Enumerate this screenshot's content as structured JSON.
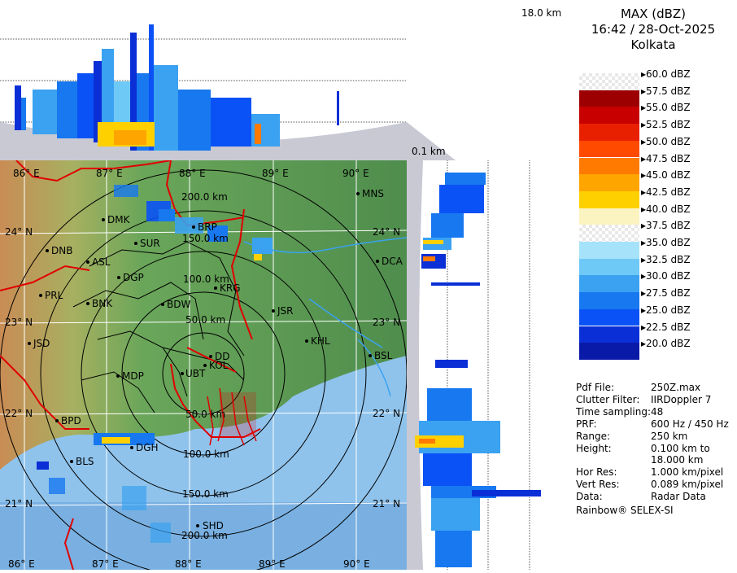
{
  "header": {
    "product": "MAX (dBZ)",
    "datetime": "16:42 / 28-Oct-2025",
    "station": "Kolkata"
  },
  "profile_labels": {
    "top_height": "18.0 km",
    "bottom_height": "0.1 km"
  },
  "colors": {
    "map_land": "#5c9a55",
    "map_sea": "#8fc3ec",
    "boundary_red": "#e00000",
    "grid_white": "#ffffff"
  },
  "color_scale": [
    {
      "label": "60.0 dBZ",
      "color": "#f2f2f2"
    },
    {
      "label": "57.5 dBZ",
      "color": "#9c0000"
    },
    {
      "label": "55.0 dBZ",
      "color": "#c80000"
    },
    {
      "label": "52.5 dBZ",
      "color": "#e82000"
    },
    {
      "label": "50.0 dBZ",
      "color": "#ff4a00"
    },
    {
      "label": "47.5 dBZ",
      "color": "#ff7a00"
    },
    {
      "label": "45.0 dBZ",
      "color": "#ffa500"
    },
    {
      "label": "42.5 dBZ",
      "color": "#ffd000"
    },
    {
      "label": "40.0 dBZ",
      "color": "#fbf3c0"
    },
    {
      "label": "37.5 dBZ",
      "color": "#ffffff"
    },
    {
      "label": "35.0 dBZ",
      "color": "#a6e3fb"
    },
    {
      "label": "32.5 dBZ",
      "color": "#6ec9f7"
    },
    {
      "label": "30.0 dBZ",
      "color": "#3aa2f0"
    },
    {
      "label": "27.5 dBZ",
      "color": "#1778f0"
    },
    {
      "label": "25.0 dBZ",
      "color": "#0a52f5"
    },
    {
      "label": "22.5 dBZ",
      "color": "#0a2fd6"
    },
    {
      "label": "20.0 dBZ",
      "color": "#0a1aa8"
    }
  ],
  "info": [
    {
      "key": "Pdf File:",
      "value": "250Z.max"
    },
    {
      "key": "Clutter Filter:",
      "value": "IIRDoppler 7"
    },
    {
      "key": "Time sampling:",
      "value": "48"
    },
    {
      "key": "PRF:",
      "value": "600 Hz / 450 Hz"
    },
    {
      "key": "Range:",
      "value": "250 km"
    },
    {
      "key": "Height:",
      "value": "0.100 km to"
    },
    {
      "key": "",
      "value": "18.000 km"
    },
    {
      "key": "Hor Res:",
      "value": "1.000 km/pixel"
    },
    {
      "key": "Vert Res:",
      "value": "0.089 km/pixel"
    },
    {
      "key": "Data:",
      "value": "Radar Data"
    }
  ],
  "footer": "Rainbow® SELEX-SI",
  "map": {
    "lon_labels_top": [
      "86° E",
      "87° E",
      "88° E",
      "89° E",
      "90° E"
    ],
    "lon_labels_bottom": [
      "86° E",
      "87° E",
      "88° E",
      "89° E",
      "90° E"
    ],
    "lat_labels_left": [
      "24° N",
      "23° N",
      "22° N",
      "21° N"
    ],
    "lat_labels_right": [
      "24° N",
      "23° N",
      "22° N",
      "21° N"
    ],
    "range_labels": [
      "200.0 km",
      "150.0 km",
      "100.0 km",
      "50.0 km",
      "50.0 km",
      "100.0 km",
      "150.0 km",
      "200.0 km"
    ],
    "cities": [
      "MNS",
      "DMK",
      "BRP",
      "SUR",
      "DNB",
      "ASL",
      "DGP",
      "DCA",
      "KRG",
      "PRL",
      "BNK",
      "BDW",
      "JSR",
      "KHL",
      "JSD",
      "BSL",
      "DD",
      "KOL",
      "UBT",
      "MDP",
      "BPD",
      "DGH",
      "BLS",
      "SHD"
    ]
  }
}
